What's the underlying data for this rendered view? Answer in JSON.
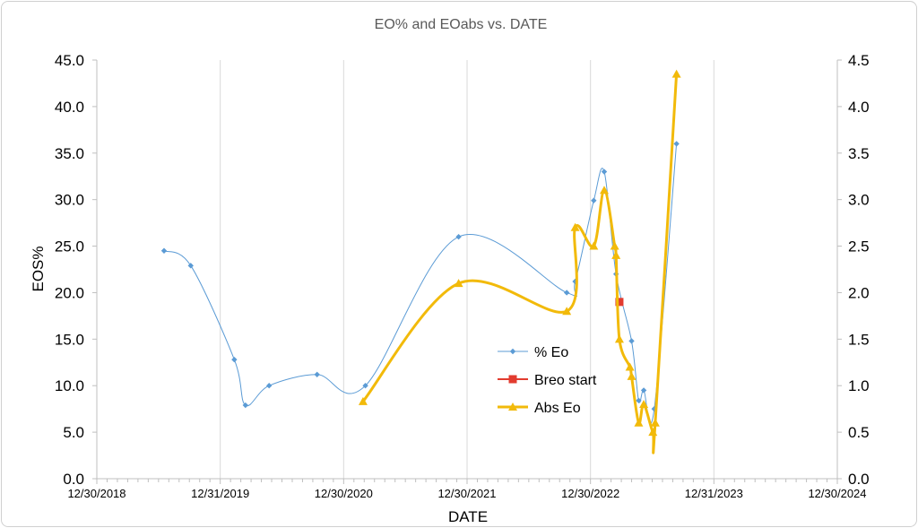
{
  "chart_data": {
    "type": "line",
    "title": "EO% and EOabs vs. DATE",
    "xlabel": "DATE",
    "ylabel": "EOS%",
    "x_ticks": [
      "12/30/2018",
      "12/31/2019",
      "12/30/2020",
      "12/30/2021",
      "12/30/2022",
      "12/31/2023",
      "12/30/2024"
    ],
    "xlim": [
      "2018-12-30",
      "2024-12-30"
    ],
    "y_ticks": [
      "0.0",
      "5.0",
      "10.0",
      "15.0",
      "20.0",
      "25.0",
      "30.0",
      "35.0",
      "40.0",
      "45.0"
    ],
    "ylim": [
      0,
      45
    ],
    "y2_ticks": [
      "0.0",
      "0.5",
      "1.0",
      "1.5",
      "2.0",
      "2.5",
      "3.0",
      "3.5",
      "4.0",
      "4.5"
    ],
    "y2lim": [
      0,
      4.5
    ],
    "grid": "vertical",
    "legend_position": "center-right",
    "series": [
      {
        "name": "% Eo",
        "axis": "left",
        "color": "#5B9BD5",
        "marker": "diamond",
        "smooth": true,
        "points": [
          {
            "x": "2019-07-17",
            "y": 24.5
          },
          {
            "x": "2019-10-04",
            "y": 22.9
          },
          {
            "x": "2020-02-10",
            "y": 12.8
          },
          {
            "x": "2020-03-14",
            "y": 7.9
          },
          {
            "x": "2020-05-23",
            "y": 10.0
          },
          {
            "x": "2020-10-12",
            "y": 11.2
          },
          {
            "x": "2021-03-04",
            "y": 10.0
          },
          {
            "x": "2021-12-05",
            "y": 26.0
          },
          {
            "x": "2022-10-21",
            "y": 20.0
          },
          {
            "x": "2022-11-15",
            "y": 21.2
          },
          {
            "x": "2023-01-09",
            "y": 29.9
          },
          {
            "x": "2023-02-09",
            "y": 33.0
          },
          {
            "x": "2023-03-16",
            "y": 22.0
          },
          {
            "x": "2023-05-01",
            "y": 14.8
          },
          {
            "x": "2023-05-22",
            "y": 8.4
          },
          {
            "x": "2023-06-06",
            "y": 9.5
          },
          {
            "x": "2023-07-07",
            "y": 7.5
          },
          {
            "x": "2023-09-11",
            "y": 36.0
          }
        ]
      },
      {
        "name": "Breo start",
        "axis": "right",
        "color": "#E23B2F",
        "marker": "square",
        "smooth": false,
        "points": [
          {
            "x": "2023-03-26",
            "y": 1.9
          }
        ]
      },
      {
        "name": "Abs Eo",
        "axis": "right",
        "color": "#F2BA0A",
        "marker": "triangle",
        "smooth": true,
        "points": [
          {
            "x": "2021-02-25",
            "y": 0.83
          },
          {
            "x": "2021-12-05",
            "y": 2.1
          },
          {
            "x": "2022-10-21",
            "y": 1.8
          },
          {
            "x": "2022-11-15",
            "y": 2.7
          },
          {
            "x": "2023-01-09",
            "y": 2.5
          },
          {
            "x": "2023-02-09",
            "y": 3.1
          },
          {
            "x": "2023-03-12",
            "y": 2.5
          },
          {
            "x": "2023-03-16",
            "y": 2.4
          },
          {
            "x": "2023-03-26",
            "y": 1.5
          },
          {
            "x": "2023-04-26",
            "y": 1.2
          },
          {
            "x": "2023-05-01",
            "y": 1.1
          },
          {
            "x": "2023-05-22",
            "y": 0.6
          },
          {
            "x": "2023-06-06",
            "y": 0.8
          },
          {
            "x": "2023-07-03",
            "y": 0.5
          },
          {
            "x": "2023-07-10",
            "y": 0.6
          },
          {
            "x": "2023-09-11",
            "y": 4.35
          }
        ]
      }
    ]
  }
}
